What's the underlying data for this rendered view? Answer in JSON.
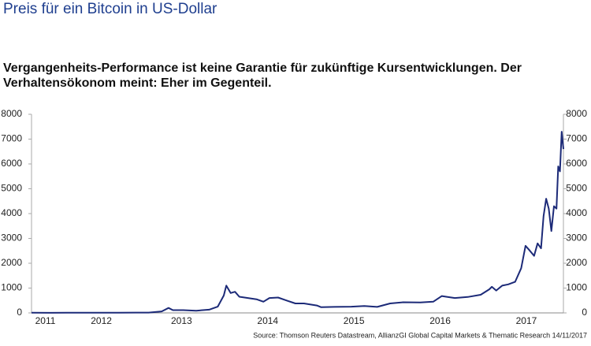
{
  "chart_data": {
    "type": "line",
    "title": "Preis für ein Bitcoin in US-Dollar",
    "subtitle": [
      "Vergangenheits-Performance ist keine Garantie für zukünftige Kursentwicklungen. Der",
      "Verhaltensökonom meint: Eher im Gegenteil."
    ],
    "source": "Source: Thomson Reuters Datastream, AllianzGI Global Capital Markets & Thematic Research 14/11/2017",
    "x": [
      2011.69,
      2011.9,
      2012.1,
      2012.3,
      2012.5,
      2012.7,
      2012.9,
      2013.05,
      2013.2,
      2013.28,
      2013.33,
      2013.45,
      2013.6,
      2013.75,
      2013.85,
      2013.92,
      2013.95,
      2014.0,
      2014.05,
      2014.1,
      2014.2,
      2014.3,
      2014.38,
      2014.45,
      2014.55,
      2014.65,
      2014.75,
      2014.85,
      2015.0,
      2015.05,
      2015.2,
      2015.4,
      2015.55,
      2015.7,
      2015.85,
      2016.0,
      2016.2,
      2016.35,
      2016.45,
      2016.5,
      2016.6,
      2016.75,
      2016.9,
      2017.0,
      2017.03,
      2017.08,
      2017.15,
      2017.22,
      2017.3,
      2017.37,
      2017.42,
      2017.46,
      2017.52,
      2017.56,
      2017.6,
      2017.63,
      2017.66,
      2017.69,
      2017.72,
      2017.75,
      2017.78,
      2017.8,
      2017.82,
      2017.84,
      2017.86
    ],
    "series": [
      {
        "name": "Bitcoin",
        "color": "#1c2a78",
        "values": [
          5,
          3,
          5,
          5,
          7,
          11,
          12,
          14,
          60,
          200,
          110,
          110,
          90,
          130,
          250,
          700,
          1100,
          800,
          850,
          650,
          600,
          550,
          450,
          600,
          620,
          500,
          380,
          380,
          300,
          230,
          240,
          250,
          280,
          240,
          380,
          430,
          420,
          450,
          680,
          650,
          600,
          640,
          730,
          950,
          1050,
          900,
          1100,
          1150,
          1250,
          1800,
          2700,
          2550,
          2300,
          2800,
          2600,
          3900,
          4600,
          4200,
          3300,
          4300,
          4200,
          5900,
          5700,
          7300,
          6600
        ]
      }
    ],
    "xlim": [
      2011.69,
      2017.86
    ],
    "xticks": [
      {
        "value": 2011.85,
        "label": "2011"
      },
      {
        "value": 2012.5,
        "label": "2012"
      },
      {
        "value": 2013.43,
        "label": "2013"
      },
      {
        "value": 2014.43,
        "label": "2014"
      },
      {
        "value": 2015.43,
        "label": "2015"
      },
      {
        "value": 2016.43,
        "label": "2016"
      },
      {
        "value": 2017.43,
        "label": "2017"
      }
    ],
    "ylim": [
      0,
      8000
    ],
    "yticks": [
      0,
      1000,
      2000,
      3000,
      4000,
      5000,
      6000,
      7000,
      8000
    ],
    "y2lim": [
      0,
      8000
    ],
    "y2ticks": [
      0,
      1000,
      2000,
      3000,
      4000,
      5000,
      6000,
      7000,
      8000
    ]
  }
}
